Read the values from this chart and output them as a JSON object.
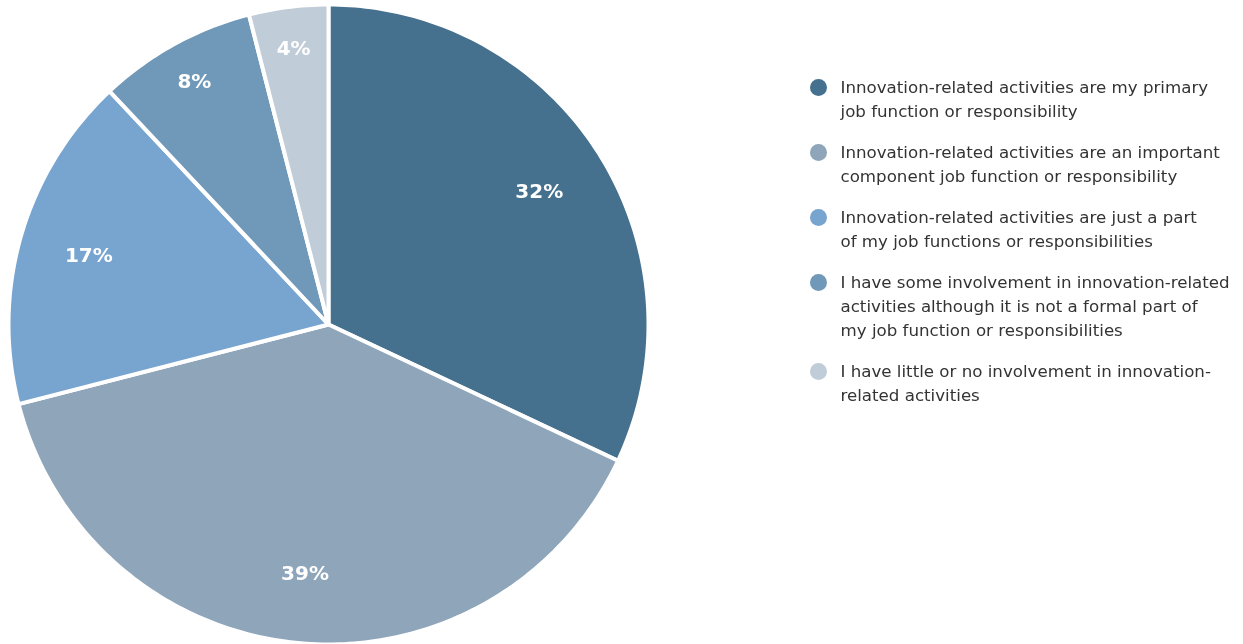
{
  "chart_data": {
    "type": "pie",
    "categories": [
      "Innovation-related activities are my primary job function or responsibility",
      "Innovation-related activities are an important component job function or responsibility",
      "Innovation-related activities are just a part of my job functions or responsibilities",
      "I have some involvement in innovation-related activities although it is not a formal part of my job function or responsibilities",
      "I have little or no involvement in innovation-related activities"
    ],
    "values": [
      32,
      39,
      17,
      8,
      4
    ],
    "colors": [
      "#45718f",
      "#8ea5ba",
      "#78a4d0",
      "#7098b8",
      "#c0ccd7"
    ],
    "value_labels": [
      "32%",
      "39%",
      "17%",
      "8%",
      "4%"
    ],
    "legend": "right"
  }
}
